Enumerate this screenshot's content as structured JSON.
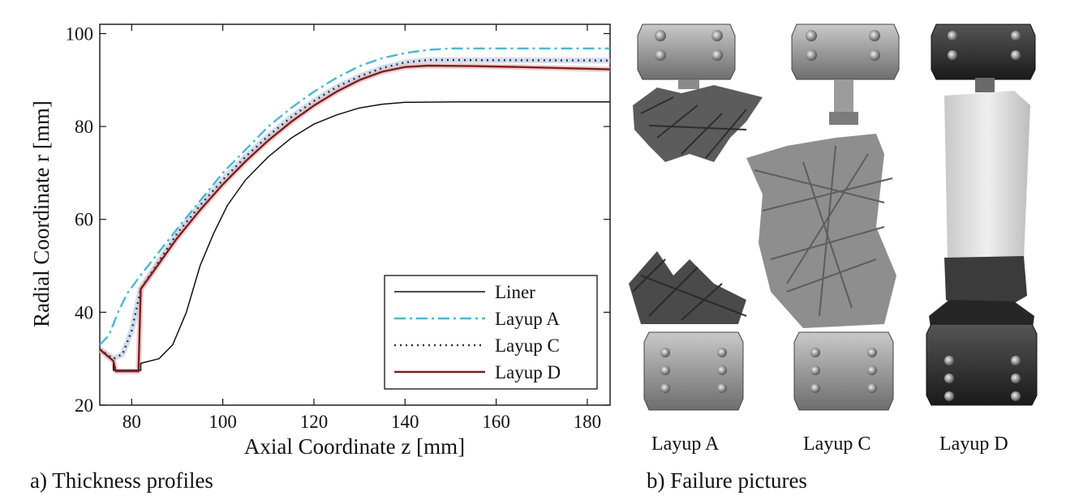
{
  "chart_data": {
    "type": "line",
    "title": "",
    "xlabel": "Axial  Coordinate z [mm]",
    "ylabel": "Radial Coordinate r [mm]",
    "xlim": [
      73,
      185
    ],
    "ylim": [
      20,
      102
    ],
    "xticks": [
      80,
      100,
      120,
      140,
      160,
      180
    ],
    "yticks": [
      20,
      40,
      60,
      80,
      100
    ],
    "grid": false,
    "legend_position": "bottom-right",
    "series": [
      {
        "name": "Liner",
        "color": "#111111",
        "style": "solid",
        "points": [
          [
            73,
            32
          ],
          [
            76,
            29.5
          ],
          [
            76,
            27.5
          ],
          [
            82,
            27.5
          ],
          [
            82,
            29
          ],
          [
            86,
            30
          ],
          [
            89,
            33
          ],
          [
            92,
            40
          ],
          [
            95,
            50
          ],
          [
            98,
            57
          ],
          [
            101,
            63
          ],
          [
            105,
            68.5
          ],
          [
            110,
            73.5
          ],
          [
            115,
            77.5
          ],
          [
            120,
            80.5
          ],
          [
            125,
            82.5
          ],
          [
            130,
            84
          ],
          [
            135,
            84.8
          ],
          [
            140,
            85.2
          ],
          [
            150,
            85.3
          ],
          [
            185,
            85.3
          ]
        ]
      },
      {
        "name": "Layup A",
        "color": "#4bb8d0",
        "style": "dashdot",
        "points": [
          [
            73,
            33
          ],
          [
            75,
            35
          ],
          [
            77,
            40
          ],
          [
            79,
            44
          ],
          [
            82,
            48
          ],
          [
            86,
            53
          ],
          [
            90,
            58
          ],
          [
            95,
            64
          ],
          [
            100,
            70
          ],
          [
            105,
            75
          ],
          [
            110,
            80
          ],
          [
            115,
            84
          ],
          [
            120,
            87.5
          ],
          [
            125,
            90.5
          ],
          [
            130,
            93
          ],
          [
            135,
            94.7
          ],
          [
            140,
            95.8
          ],
          [
            145,
            96.5
          ],
          [
            150,
            96.8
          ],
          [
            185,
            96.8
          ]
        ]
      },
      {
        "name": "Layup C",
        "color": "#1f3357",
        "style": "dotted",
        "points": [
          [
            73,
            32
          ],
          [
            76,
            30
          ],
          [
            78,
            31
          ],
          [
            80,
            36
          ],
          [
            82,
            45
          ],
          [
            86,
            51
          ],
          [
            90,
            57
          ],
          [
            95,
            63
          ],
          [
            100,
            68.5
          ],
          [
            105,
            73.5
          ],
          [
            110,
            78
          ],
          [
            115,
            82
          ],
          [
            120,
            85.5
          ],
          [
            125,
            88.5
          ],
          [
            130,
            90.8
          ],
          [
            135,
            92.6
          ],
          [
            140,
            93.8
          ],
          [
            145,
            94.3
          ],
          [
            150,
            94.3
          ],
          [
            185,
            94.2
          ]
        ]
      },
      {
        "name": "Layup D",
        "color": "#7a1f1f",
        "style": "solid",
        "points": [
          [
            73,
            32
          ],
          [
            76,
            29.5
          ],
          [
            76.5,
            27.3
          ],
          [
            81.5,
            27.3
          ],
          [
            82,
            45
          ],
          [
            86,
            50.5
          ],
          [
            90,
            56
          ],
          [
            95,
            62
          ],
          [
            100,
            67.5
          ],
          [
            105,
            72.5
          ],
          [
            110,
            77
          ],
          [
            115,
            81
          ],
          [
            120,
            84.5
          ],
          [
            125,
            87.5
          ],
          [
            130,
            90
          ],
          [
            135,
            91.8
          ],
          [
            140,
            92.8
          ],
          [
            145,
            93.1
          ],
          [
            155,
            93
          ],
          [
            165,
            92.8
          ],
          [
            185,
            92.3
          ]
        ]
      }
    ]
  },
  "captions": {
    "left": "a) Thickness profiles",
    "right": "b) Failure pictures"
  },
  "photo_labels": [
    "Layup A",
    "Layup C",
    "Layup D"
  ]
}
